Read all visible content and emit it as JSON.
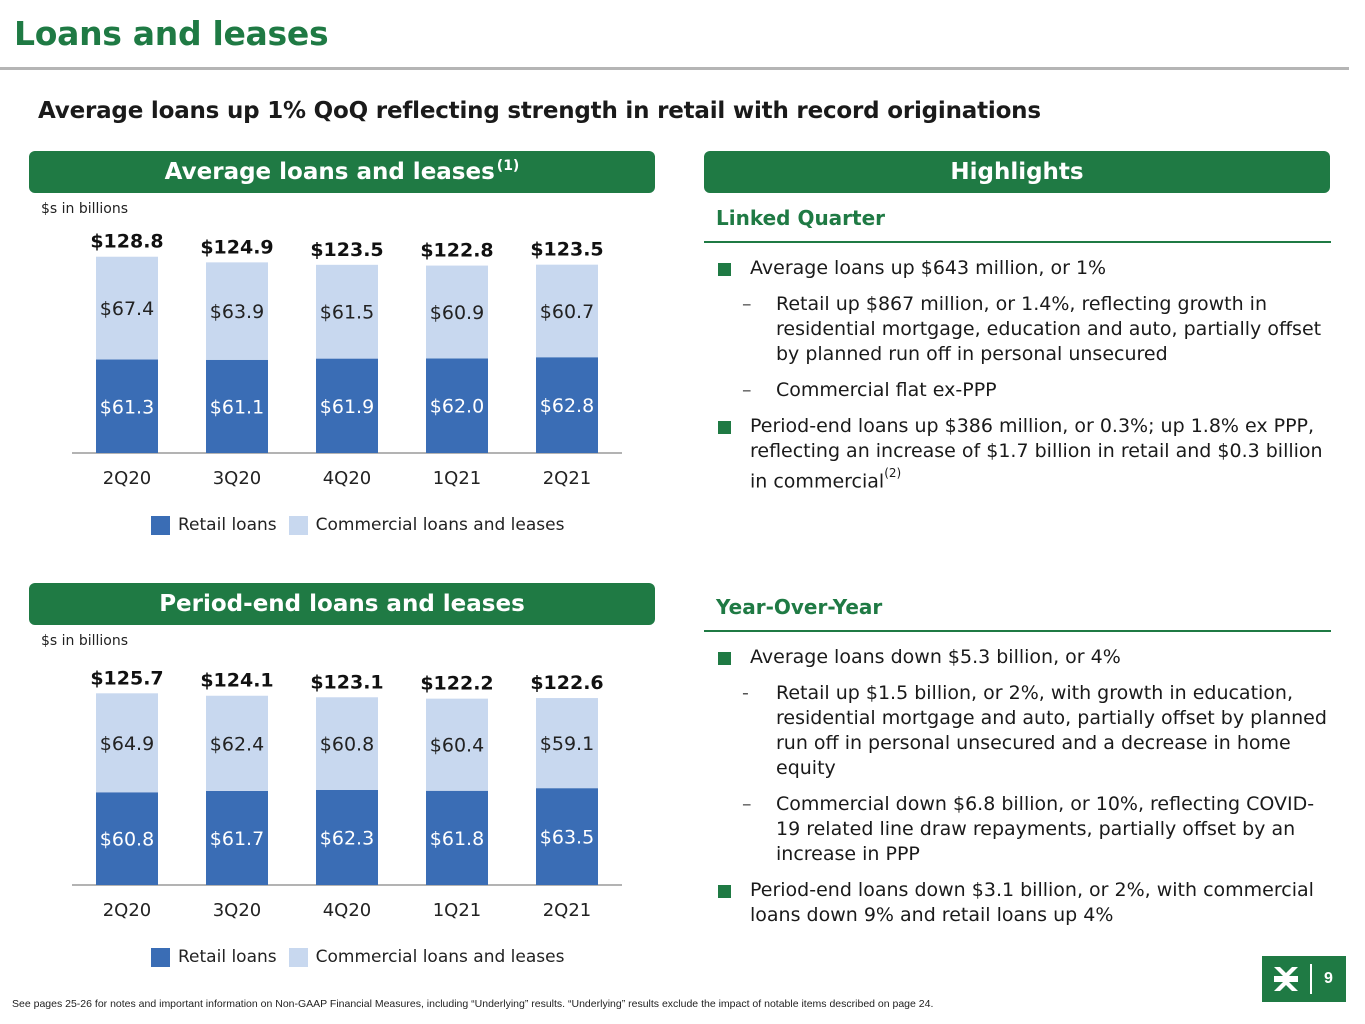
{
  "page": {
    "title": "Loans and leases",
    "subtitle": "Average loans up 1% QoQ reflecting strength in retail with record originations",
    "page_number": "9",
    "footnote": "See pages 25-26 for notes and important information on Non-GAAP Financial Measures, including “Underlying” results. “Underlying” results exclude the impact of notable items described on page 24."
  },
  "colors": {
    "brand_green": "#1f7a44",
    "retail": "#3a6db5",
    "commercial": "#c8d8ef"
  },
  "avg_panel": {
    "title": "Average loans and leases",
    "title_ref": "(1)",
    "units": "$s in billions"
  },
  "pe_panel": {
    "title": "Period-end loans and leases",
    "units": "$s in billions"
  },
  "legend": {
    "retail": "Retail loans",
    "commercial": "Commercial loans and leases"
  },
  "chart_data": [
    {
      "type": "bar",
      "stacked": true,
      "title": "Average loans and leases",
      "categories": [
        "2Q20",
        "3Q20",
        "4Q20",
        "1Q21",
        "2Q21"
      ],
      "series": [
        {
          "name": "Retail loans",
          "values": [
            61.3,
            61.1,
            61.9,
            62.0,
            62.8
          ],
          "labels": [
            "$61.3",
            "$61.1",
            "$61.9",
            "$62.0",
            "$62.8"
          ]
        },
        {
          "name": "Commercial loans and leases",
          "values": [
            67.4,
            63.9,
            61.5,
            60.9,
            60.7
          ],
          "labels": [
            "$67.4",
            "$63.9",
            "$61.5",
            "$60.9",
            "$60.7"
          ]
        }
      ],
      "totals": [
        "$128.8",
        "$124.9",
        "$123.5",
        "$122.8",
        "$123.5"
      ],
      "ylim": [
        0,
        140
      ]
    },
    {
      "type": "bar",
      "stacked": true,
      "title": "Period-end loans and leases",
      "categories": [
        "2Q20",
        "3Q20",
        "4Q20",
        "1Q21",
        "2Q21"
      ],
      "series": [
        {
          "name": "Retail loans",
          "values": [
            60.8,
            61.7,
            62.3,
            61.8,
            63.5
          ],
          "labels": [
            "$60.8",
            "$61.7",
            "$62.3",
            "$61.8",
            "$63.5"
          ]
        },
        {
          "name": "Commercial loans and leases",
          "values": [
            64.9,
            62.4,
            60.8,
            60.4,
            59.1
          ],
          "labels": [
            "$64.9",
            "$62.4",
            "$60.8",
            "$60.4",
            "$59.1"
          ]
        }
      ],
      "totals": [
        "$125.7",
        "$124.1",
        "$123.1",
        "$122.2",
        "$122.6"
      ],
      "ylim": [
        0,
        140
      ]
    }
  ],
  "highlights": {
    "title": "Highlights",
    "linked_quarter": {
      "heading": "Linked Quarter",
      "b1": "Average loans up $643 million, or 1%",
      "b1_sub1": "Retail up $867 million, or 1.4%, reflecting growth in residential mortgage, education and auto, partially offset by planned run off in personal unsecured",
      "b1_sub2": "Commercial flat ex-PPP",
      "b2": "Period-end loans up $386 million, or 0.3%; up 1.8% ex PPP, reflecting an increase of $1.7 billion in retail and $0.3 billion in commercial",
      "b2_ref": "(2)"
    },
    "yoy": {
      "heading": "Year-Over-Year",
      "b1": "Average loans down $5.3 billion, or 4%",
      "b1_sub1": "Retail up $1.5 billion, or 2%, with growth in education, residential mortgage and auto, partially offset by planned run off in personal unsecured and a decrease in home equity",
      "b1_sub2": "Commercial down $6.8 billion, or 10%, reflecting COVID-19 related line draw repayments, partially offset by an increase in PPP",
      "b2": "Period-end loans down $3.1 billion, or 2%, with commercial loans down 9% and retail loans up 4%"
    }
  }
}
